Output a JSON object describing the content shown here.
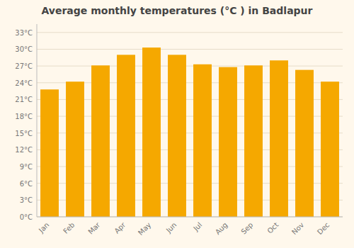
{
  "chart_data": {
    "type": "bar",
    "title": "Average monthly temperatures (°C ) in Badlapur",
    "categories": [
      "Jan",
      "Feb",
      "Mar",
      "Apr",
      "May",
      "Jun",
      "Jul",
      "Aug",
      "Sep",
      "Oct",
      "Nov",
      "Dec"
    ],
    "values": [
      22.8,
      24.2,
      27.1,
      29.0,
      30.3,
      29.0,
      27.3,
      26.8,
      27.1,
      28.0,
      26.3,
      24.2
    ],
    "color": "#F5A800",
    "ylim": [
      0,
      34.5
    ],
    "yticks": [
      {
        "value": 0,
        "label": "0°C"
      },
      {
        "value": 3,
        "label": "3°C"
      },
      {
        "value": 6,
        "label": "6°C"
      },
      {
        "value": 9,
        "label": "9°C"
      },
      {
        "value": 12,
        "label": "12°C"
      },
      {
        "value": 15,
        "label": "15°C"
      },
      {
        "value": 18,
        "label": "18°C"
      },
      {
        "value": 21,
        "label": "21°C"
      },
      {
        "value": 24,
        "label": "24°C"
      },
      {
        "value": 27,
        "label": "27°C"
      },
      {
        "value": 30,
        "label": "30°C"
      },
      {
        "value": 33,
        "label": "33°C"
      }
    ],
    "grid": true
  }
}
